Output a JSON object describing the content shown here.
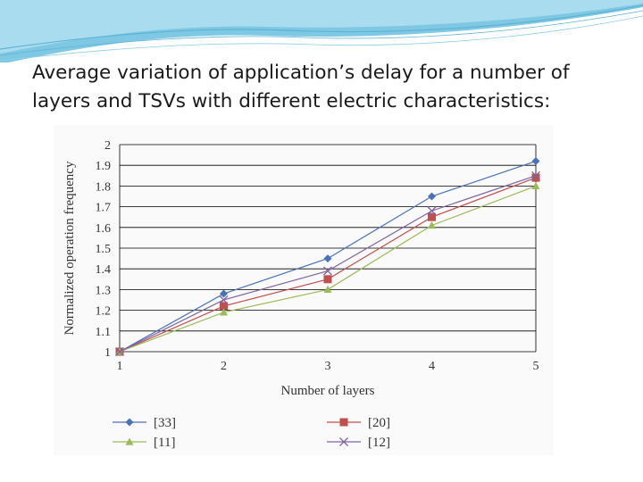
{
  "slide": {
    "title": "Average variation of application’s delay for a number of layers and TSVs with different electric characteristics:"
  },
  "chart_data": {
    "type": "line",
    "title": "",
    "xlabel": "Number of layers",
    "ylabel": "Normalized operation frequency",
    "x": [
      1,
      2,
      3,
      4,
      5
    ],
    "xlim": [
      1,
      5
    ],
    "ylim": [
      1,
      2
    ],
    "x_ticks": [
      "1",
      "2",
      "3",
      "4",
      "5"
    ],
    "y_ticks": [
      "1",
      "1.1",
      "1.2",
      "1.3",
      "1.4",
      "1.5",
      "1.6",
      "1.7",
      "1.8",
      "1.9",
      "2"
    ],
    "grid": "horizontal",
    "legend_position": "bottom",
    "series": [
      {
        "name": "[33]",
        "values": [
          1.0,
          1.28,
          1.45,
          1.75,
          1.92
        ],
        "color": "#4a72b8",
        "marker": "diamond"
      },
      {
        "name": "[20]",
        "values": [
          1.0,
          1.22,
          1.35,
          1.65,
          1.84
        ],
        "color": "#c0504d",
        "marker": "square"
      },
      {
        "name": "[11]",
        "values": [
          1.0,
          1.19,
          1.3,
          1.61,
          1.8
        ],
        "color": "#9bbb59",
        "marker": "triangle"
      },
      {
        "name": "[12]",
        "values": [
          1.0,
          1.25,
          1.39,
          1.68,
          1.85
        ],
        "color": "#8064a2",
        "marker": "x"
      }
    ]
  }
}
